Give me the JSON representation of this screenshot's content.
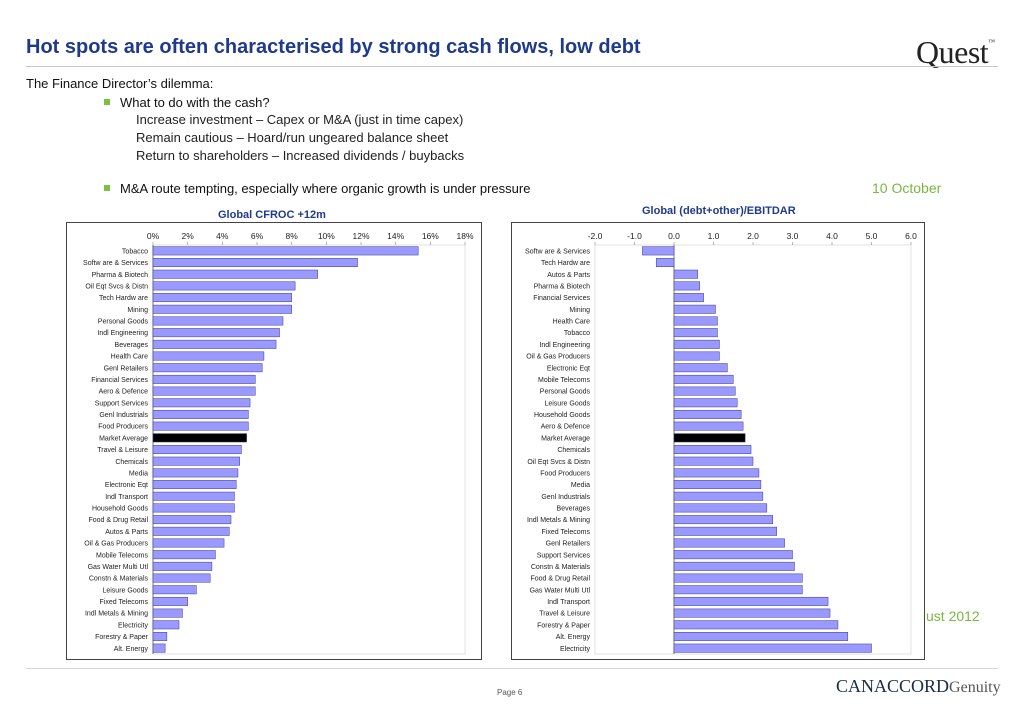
{
  "slide": {
    "title": "Hot spots are often characterised by strong cash flows, low debt",
    "logo": "Quest",
    "logo_tm": "™",
    "subheading": "The Finance Director’s dilemma:",
    "bullet1": "What to do with the cash?",
    "sub_points": [
      "Increase investment – Capex or M&A (just in time capex)",
      "Remain cautious – Hoard/run ungeared balance sheet",
      "Return to shareholders – Increased dividends / buybacks"
    ],
    "bullet2": "M&A route tempting, especially where organic growth is under pressure",
    "date_part1": "10 October",
    "date_part2": "ust 2012",
    "page_label": "Page 6",
    "footer_logo": "CANACCORD",
    "footer_logo_suffix": "Genuity",
    "colors": {
      "title": "#1f3a8c",
      "bar_fill": "#9999ff",
      "bar_highlight": "#000000",
      "bullet": "#7fbf3f",
      "date": "#7ab640"
    }
  },
  "chart_data": [
    {
      "type": "bar",
      "orientation": "horizontal",
      "title": "Global CFROC +12m",
      "x_ticks": [
        "0%",
        "2%",
        "4%",
        "6%",
        "8%",
        "10%",
        "12%",
        "14%",
        "16%",
        "18%"
      ],
      "xlim": [
        0,
        18
      ],
      "unit": "%",
      "highlight": "Market Average",
      "categories": [
        "Tobacco",
        "Softw are & Services",
        "Pharma & Biotech",
        "Oil Eqt Svcs & Distn",
        "Tech Hardw are",
        "Mining",
        "Personal Goods",
        "Indl Engineering",
        "Beverages",
        "Health Care",
        "Genl Retailers",
        "Financial Services",
        "Aero & Defence",
        "Support Services",
        "Genl Industrials",
        "Food Producers",
        "Market Average",
        "Travel & Leisure",
        "Chemicals",
        "Media",
        "Electronic Eqt",
        "Indl Transport",
        "Household Goods",
        "Food & Drug Retail",
        "Autos & Parts",
        "Oil & Gas Producers",
        "Mobile Telecoms",
        "Gas Water Multi Utl",
        "Constn & Materials",
        "Leisure Goods",
        "Fixed Telecoms",
        "Indl Metals & Mining",
        "Electricity",
        "Forestry & Paper",
        "Alt. Energy"
      ],
      "values": [
        15.3,
        11.8,
        9.5,
        8.2,
        8.0,
        8.0,
        7.5,
        7.3,
        7.1,
        6.4,
        6.3,
        5.9,
        5.9,
        5.6,
        5.5,
        5.5,
        5.4,
        5.1,
        5.0,
        4.9,
        4.8,
        4.7,
        4.7,
        4.5,
        4.4,
        4.1,
        3.6,
        3.4,
        3.3,
        2.5,
        2.0,
        1.7,
        1.5,
        0.8,
        0.7
      ]
    },
    {
      "type": "bar",
      "orientation": "horizontal",
      "title": "Global (debt+other)/EBITDAR",
      "x_ticks": [
        "-2.0",
        "-1.0",
        "0.0",
        "1.0",
        "2.0",
        "3.0",
        "4.0",
        "5.0",
        "6.0"
      ],
      "xlim": [
        -2,
        6
      ],
      "highlight": "Market Average",
      "categories": [
        "Softw are & Services",
        "Tech Hardw are",
        "Autos & Parts",
        "Pharma & Biotech",
        "Financial Services",
        "Mining",
        "Health Care",
        "Tobacco",
        "Indl Engineering",
        "Oil & Gas Producers",
        "Electronic Eqt",
        "Mobile Telecoms",
        "Personal Goods",
        "Leisure Goods",
        "Household Goods",
        "Aero & Defence",
        "Market Average",
        "Chemicals",
        "Oil Eqt Svcs & Distn",
        "Food Producers",
        "Media",
        "Genl Industrials",
        "Beverages",
        "Indl Metals & Mining",
        "Fixed Telecoms",
        "Genl Retailers",
        "Support Services",
        "Constn & Materials",
        "Food & Drug Retail",
        "Gas Water Multi Utl",
        "Indl Transport",
        "Travel & Leisure",
        "Forestry & Paper",
        "Alt. Energy",
        "Electricity"
      ],
      "values": [
        -0.8,
        -0.45,
        0.6,
        0.65,
        0.75,
        1.05,
        1.1,
        1.1,
        1.15,
        1.15,
        1.35,
        1.5,
        1.55,
        1.6,
        1.7,
        1.75,
        1.8,
        1.95,
        2.0,
        2.15,
        2.2,
        2.25,
        2.35,
        2.5,
        2.6,
        2.8,
        3.0,
        3.05,
        3.25,
        3.25,
        3.9,
        3.95,
        4.15,
        4.4,
        5.0
      ]
    }
  ]
}
